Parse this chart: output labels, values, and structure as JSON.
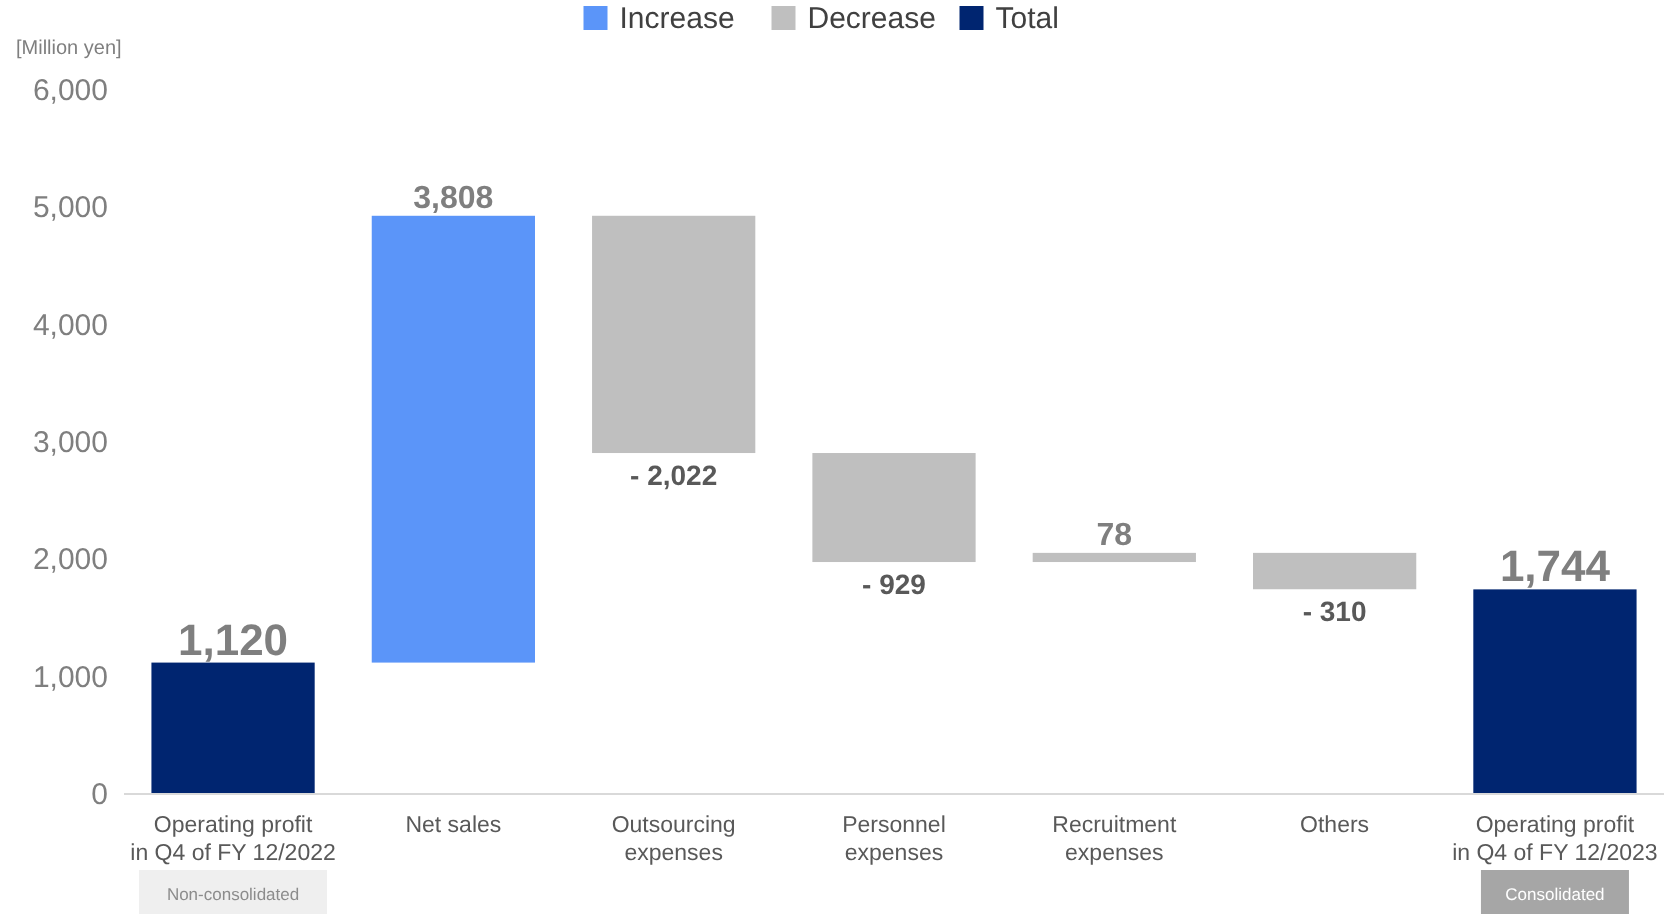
{
  "chart_data": {
    "type": "bar",
    "ylabel": "[Million yen]",
    "categories": [
      "Operating profit\nin Q4 of FY 12/2022",
      "Net sales",
      "Outsourcing\nexpenses",
      "Personnel\nexpenses",
      "Recruitment\nexpenses",
      "Others",
      "Operating profit\nin Q4 of FY 12/2023"
    ],
    "series": [
      {
        "name": "Increase",
        "color": "#5b95f9",
        "base": [
          null,
          1120,
          null,
          null,
          null,
          null,
          null
        ],
        "values": [
          null,
          3808,
          null,
          null,
          null,
          null,
          null
        ],
        "value_labels": [
          null,
          "3,808",
          null,
          null,
          null,
          null,
          null
        ]
      },
      {
        "name": "Decrease",
        "color": "#bfbfbf",
        "base": [
          null,
          null,
          4928,
          2906,
          1977,
          2055,
          null
        ],
        "values": [
          null,
          null,
          -2022,
          -929,
          78,
          -310,
          null
        ],
        "value_labels": [
          null,
          null,
          "- 2,022",
          "- 929",
          "78",
          "- 310",
          null
        ]
      },
      {
        "name": "Total",
        "color": "#002570",
        "base": [
          0,
          null,
          null,
          null,
          null,
          null,
          0
        ],
        "values": [
          1120,
          null,
          null,
          null,
          null,
          null,
          1744
        ],
        "value_labels": [
          "1,120",
          null,
          null,
          null,
          null,
          null,
          "1,744"
        ]
      }
    ],
    "ylim": [
      0,
      6000
    ],
    "yticks": [
      {
        "value": 0,
        "label": "0"
      },
      {
        "value": 1000,
        "label": "1,000"
      },
      {
        "value": 2000,
        "label": "2,000"
      },
      {
        "value": 3000,
        "label": "3,000"
      },
      {
        "value": 4000,
        "label": "4,000"
      },
      {
        "value": 5000,
        "label": "5,000"
      },
      {
        "value": 6000,
        "label": "6,000"
      }
    ],
    "grid": false,
    "legend": "top",
    "annotations": [
      "Non-consolidated",
      "Consolidated"
    ]
  }
}
